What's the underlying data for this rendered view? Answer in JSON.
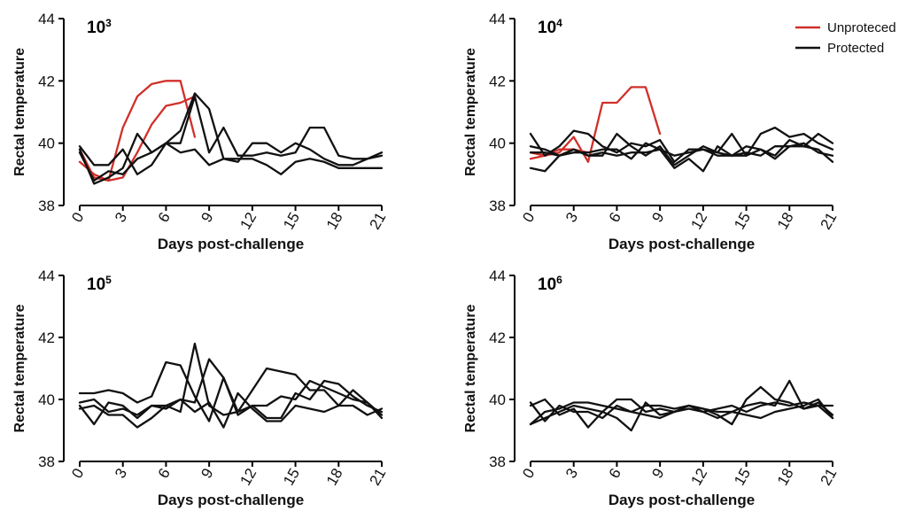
{
  "legend": {
    "items": [
      {
        "label": "Unproteced",
        "color": "#d0302a"
      },
      {
        "label": "Protected",
        "color": "#111111"
      }
    ]
  },
  "chart_data": [
    {
      "type": "line",
      "title": "10",
      "title_sup": "3",
      "xlabel": "Days post-challenge",
      "ylabel": "Rectal temperature",
      "xlim": [
        0,
        21
      ],
      "ylim": [
        38,
        44
      ],
      "xticks": [
        0,
        3,
        6,
        9,
        12,
        15,
        18,
        21
      ],
      "yticks": [
        38,
        40,
        42,
        44
      ],
      "series": [
        {
          "name": "Unproteced",
          "color": "#d0302a",
          "x": [
            0,
            1,
            2,
            3,
            4,
            5,
            6,
            7,
            8
          ],
          "y": [
            39.8,
            38.9,
            38.8,
            38.9,
            39.7,
            40.6,
            41.2,
            41.3,
            41.5
          ]
        },
        {
          "name": "Unproteced",
          "color": "#d0302a",
          "x": [
            0,
            1,
            2,
            3,
            4,
            5,
            6,
            7,
            8
          ],
          "y": [
            39.4,
            39.0,
            38.8,
            40.5,
            41.5,
            41.9,
            42.0,
            42.0,
            40.2
          ]
        },
        {
          "name": "Protected",
          "color": "#111111",
          "x": [
            0,
            1,
            2,
            3,
            4,
            5,
            6,
            7,
            8,
            9,
            10,
            11,
            12,
            13,
            14,
            15,
            16,
            17,
            18,
            19,
            20,
            21
          ],
          "y": [
            39.9,
            39.3,
            39.3,
            39.8,
            39.0,
            39.3,
            40.0,
            40.4,
            41.6,
            41.1,
            39.5,
            39.4,
            40.0,
            40.0,
            39.7,
            40.0,
            39.8,
            39.5,
            39.3,
            39.3,
            39.5,
            39.7
          ]
        },
        {
          "name": "Protected",
          "color": "#111111",
          "x": [
            0,
            1,
            2,
            3,
            4,
            5,
            6,
            7,
            8,
            9,
            10,
            11,
            12,
            13,
            14,
            15,
            16,
            17,
            18,
            19,
            20,
            21
          ],
          "y": [
            39.8,
            38.7,
            38.9,
            39.2,
            40.3,
            39.7,
            40.0,
            40.0,
            41.5,
            39.7,
            40.5,
            39.6,
            39.6,
            39.7,
            39.6,
            39.7,
            40.5,
            40.5,
            39.6,
            39.5,
            39.5,
            39.6
          ]
        },
        {
          "name": "Protected",
          "color": "#111111",
          "x": [
            0,
            1,
            2,
            3,
            4,
            5,
            6,
            7,
            8,
            9,
            10,
            11,
            12,
            13,
            14,
            15,
            16,
            17,
            18,
            19,
            20,
            21
          ],
          "y": [
            39.7,
            38.8,
            39.1,
            39.0,
            39.5,
            39.7,
            40.0,
            39.7,
            39.8,
            39.3,
            39.5,
            39.5,
            39.5,
            39.3,
            39.0,
            39.4,
            39.5,
            39.4,
            39.2,
            39.2,
            39.2,
            39.2
          ]
        }
      ]
    },
    {
      "type": "line",
      "title": "10",
      "title_sup": "4",
      "xlabel": "Days post-challenge",
      "ylabel": "Rectal temperature",
      "xlim": [
        0,
        21
      ],
      "ylim": [
        38,
        44
      ],
      "xticks": [
        0,
        3,
        6,
        9,
        12,
        15,
        18,
        21
      ],
      "yticks": [
        38,
        40,
        42,
        44
      ],
      "series": [
        {
          "name": "Unproteced",
          "color": "#d0302a",
          "x": [
            0,
            1,
            2,
            3,
            4,
            5,
            6,
            7,
            8,
            9
          ],
          "y": [
            39.5,
            39.6,
            39.7,
            40.2,
            39.4,
            41.3,
            41.3,
            41.8,
            41.8,
            40.3
          ]
        },
        {
          "name": "Unproteced",
          "color": "#d0302a",
          "x": [
            0,
            1,
            2,
            3,
            4
          ],
          "y": [
            39.7,
            39.6,
            39.8,
            39.8,
            39.7
          ]
        },
        {
          "name": "Protected",
          "color": "#111111",
          "x": [
            0,
            1,
            2,
            3,
            4,
            5,
            6,
            7,
            8,
            9,
            10,
            11,
            12,
            13,
            14,
            15,
            16,
            17,
            18,
            19,
            20,
            21
          ],
          "y": [
            40.3,
            39.6,
            39.9,
            40.4,
            40.3,
            39.9,
            39.7,
            40.0,
            39.9,
            40.1,
            39.4,
            39.8,
            39.8,
            39.7,
            40.3,
            39.6,
            40.3,
            40.5,
            40.2,
            40.3,
            40.0,
            39.8
          ]
        },
        {
          "name": "Protected",
          "color": "#111111",
          "x": [
            0,
            1,
            2,
            3,
            4,
            5,
            6,
            7,
            8,
            9,
            10,
            11,
            12,
            13,
            14,
            15,
            16,
            17,
            18,
            19,
            20,
            21
          ],
          "y": [
            39.2,
            39.1,
            39.6,
            39.8,
            39.6,
            39.6,
            40.3,
            39.9,
            39.6,
            39.9,
            39.3,
            39.6,
            39.9,
            39.7,
            39.6,
            39.9,
            39.8,
            39.6,
            40.1,
            39.9,
            40.3,
            40.0
          ]
        },
        {
          "name": "Protected",
          "color": "#111111",
          "x": [
            0,
            1,
            2,
            3,
            4,
            5,
            6,
            7,
            8,
            9,
            10,
            11,
            12,
            13,
            14,
            15,
            16,
            17,
            18,
            19,
            20,
            21
          ],
          "y": [
            39.9,
            39.8,
            39.6,
            39.7,
            39.7,
            39.8,
            39.8,
            39.5,
            40.0,
            39.8,
            39.2,
            39.5,
            39.1,
            39.9,
            39.6,
            39.6,
            39.8,
            39.5,
            39.9,
            39.9,
            39.8,
            39.4
          ]
        },
        {
          "name": "Protected",
          "color": "#111111",
          "x": [
            0,
            1,
            2,
            3,
            4,
            5,
            6,
            7,
            8,
            9,
            10,
            11,
            12,
            13,
            14,
            15,
            16,
            17,
            18,
            19,
            20,
            21
          ],
          "y": [
            39.7,
            39.7,
            39.6,
            39.8,
            39.6,
            39.7,
            39.6,
            39.7,
            39.7,
            39.8,
            39.6,
            39.7,
            39.8,
            39.6,
            39.6,
            39.7,
            39.6,
            39.9,
            39.9,
            40.0,
            39.7,
            39.6
          ]
        }
      ]
    },
    {
      "type": "line",
      "title": "10",
      "title_sup": "5",
      "xlabel": "Days post-challenge",
      "ylabel": "Rectal temperature",
      "xlim": [
        0,
        21
      ],
      "ylim": [
        38,
        44
      ],
      "xticks": [
        0,
        3,
        6,
        9,
        12,
        15,
        18,
        21
      ],
      "yticks": [
        38,
        40,
        42,
        44
      ],
      "series": [
        {
          "name": "Protected",
          "color": "#111111",
          "x": [
            0,
            1,
            2,
            3,
            4,
            5,
            6,
            7,
            8,
            9,
            10,
            11,
            12,
            13,
            14,
            15,
            16,
            17,
            18,
            19,
            20,
            21
          ],
          "y": [
            40.2,
            40.2,
            40.3,
            40.2,
            39.9,
            40.1,
            41.2,
            41.1,
            40.1,
            39.3,
            40.7,
            39.5,
            39.8,
            39.8,
            40.1,
            40.0,
            40.6,
            40.4,
            40.2,
            40.0,
            39.9,
            39.5
          ]
        },
        {
          "name": "Protected",
          "color": "#111111",
          "x": [
            0,
            1,
            2,
            3,
            4,
            5,
            6,
            7,
            8,
            9,
            10,
            11,
            12,
            13,
            14,
            15,
            16,
            17,
            18,
            19,
            20,
            21
          ],
          "y": [
            39.8,
            39.2,
            39.9,
            39.8,
            39.4,
            39.8,
            39.8,
            39.6,
            41.8,
            39.8,
            39.5,
            39.6,
            39.8,
            39.4,
            39.4,
            40.2,
            40.0,
            40.6,
            40.5,
            40.1,
            39.8,
            39.6
          ]
        },
        {
          "name": "Protected",
          "color": "#111111",
          "x": [
            0,
            1,
            2,
            3,
            4,
            5,
            6,
            7,
            8,
            9,
            10,
            11,
            12,
            13,
            14,
            15,
            16,
            17,
            18,
            19,
            20,
            21
          ],
          "y": [
            39.7,
            39.8,
            39.5,
            39.5,
            39.1,
            39.4,
            39.8,
            40.0,
            39.9,
            41.3,
            40.7,
            39.6,
            40.3,
            41.0,
            40.9,
            40.8,
            40.3,
            40.3,
            39.8,
            40.3,
            39.9,
            39.4
          ]
        },
        {
          "name": "Protected",
          "color": "#111111",
          "x": [
            0,
            1,
            2,
            3,
            4,
            5,
            6,
            7,
            8,
            9,
            10,
            11,
            12,
            13,
            14,
            15,
            16,
            17,
            18,
            19,
            20,
            21
          ],
          "y": [
            39.9,
            40.0,
            39.6,
            39.7,
            39.5,
            39.8,
            39.7,
            40.0,
            39.6,
            39.9,
            39.1,
            40.2,
            39.7,
            39.3,
            39.3,
            39.8,
            39.7,
            39.6,
            39.8,
            39.8,
            39.5,
            39.7
          ]
        }
      ]
    },
    {
      "type": "line",
      "title": "10",
      "title_sup": "6",
      "xlabel": "Days post-challenge",
      "ylabel": "Rectal temperature",
      "xlim": [
        0,
        21
      ],
      "ylim": [
        38,
        44
      ],
      "xticks": [
        0,
        3,
        6,
        9,
        12,
        15,
        18,
        21
      ],
      "yticks": [
        38,
        40,
        42,
        44
      ],
      "series": [
        {
          "name": "Protected",
          "color": "#111111",
          "x": [
            0,
            1,
            2,
            3,
            4,
            5,
            6,
            7,
            8,
            9,
            10,
            11,
            12,
            13,
            14,
            15,
            16,
            17,
            18,
            19,
            20,
            21
          ],
          "y": [
            39.2,
            39.4,
            39.6,
            39.8,
            39.7,
            39.6,
            40.0,
            40.0,
            39.6,
            39.7,
            39.6,
            39.8,
            39.7,
            39.6,
            39.6,
            39.8,
            39.9,
            39.8,
            40.6,
            39.7,
            39.9,
            39.5
          ]
        },
        {
          "name": "Protected",
          "color": "#111111",
          "x": [
            0,
            1,
            2,
            3,
            4,
            5,
            6,
            7,
            8,
            9,
            10,
            11,
            12,
            13,
            14,
            15,
            16,
            17,
            18,
            19,
            20,
            21
          ],
          "y": [
            39.8,
            40.0,
            39.5,
            39.7,
            39.1,
            39.6,
            39.4,
            39.0,
            39.9,
            39.5,
            39.6,
            39.8,
            39.7,
            39.5,
            39.2,
            40.0,
            40.4,
            40.0,
            39.9,
            39.7,
            39.8,
            39.4
          ]
        },
        {
          "name": "Protected",
          "color": "#111111",
          "x": [
            0,
            1,
            2,
            3,
            4,
            5,
            6,
            7,
            8,
            9,
            10,
            11,
            12,
            13,
            14,
            15,
            16,
            17,
            18,
            19,
            20,
            21
          ],
          "y": [
            39.9,
            39.3,
            39.8,
            39.6,
            39.6,
            39.4,
            39.8,
            39.6,
            39.5,
            39.4,
            39.6,
            39.7,
            39.6,
            39.7,
            39.8,
            39.6,
            39.8,
            39.9,
            39.8,
            39.9,
            39.8,
            39.8
          ]
        },
        {
          "name": "Protected",
          "color": "#111111",
          "x": [
            0,
            1,
            2,
            3,
            4,
            5,
            6,
            7,
            8,
            9,
            10,
            11,
            12,
            13,
            14,
            15,
            16,
            17,
            18,
            19,
            20,
            21
          ],
          "y": [
            39.2,
            39.6,
            39.7,
            39.9,
            39.9,
            39.8,
            39.7,
            39.6,
            39.8,
            39.8,
            39.7,
            39.8,
            39.6,
            39.4,
            39.6,
            39.5,
            39.4,
            39.6,
            39.7,
            39.8,
            40.0,
            39.4
          ]
        }
      ]
    }
  ]
}
